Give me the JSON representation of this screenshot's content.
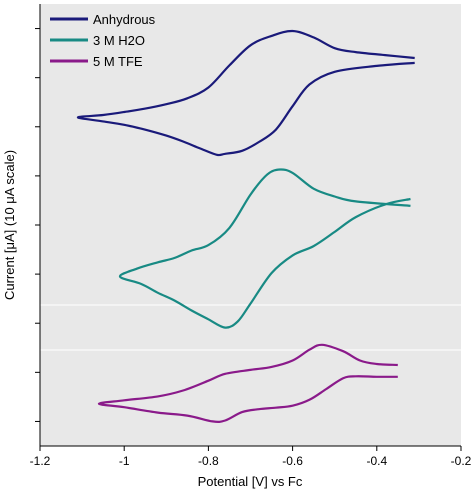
{
  "chart_data": {
    "type": "line",
    "xlabel": "Potential [V] vs Fc",
    "ylabel": "Current [μA] (10 μA scale)",
    "xlim": [
      -1.2,
      -0.2
    ],
    "x_ticks": [
      "-1.2",
      "-1",
      "-0.8",
      "-0.6",
      "-0.4",
      "-0.2"
    ],
    "ylim": [
      -45,
      45
    ],
    "y_ticks": [
      -40,
      -30,
      -20,
      -10,
      0,
      10,
      20,
      30,
      40
    ],
    "grid": false,
    "legend_position": "top-left",
    "series": [
      {
        "name": "Anhydrous",
        "color": "#1a1a7a",
        "points": [
          [
            -0.31,
            33.0
          ],
          [
            -0.4,
            32.4
          ],
          [
            -0.5,
            31.2
          ],
          [
            -0.56,
            28.6
          ],
          [
            -0.6,
            24.2
          ],
          [
            -0.64,
            19.4
          ],
          [
            -0.68,
            16.9
          ],
          [
            -0.72,
            15.1
          ],
          [
            -0.76,
            14.5
          ],
          [
            -0.78,
            14.3
          ],
          [
            -0.82,
            15.6
          ],
          [
            -0.86,
            17.0
          ],
          [
            -0.9,
            18.2
          ],
          [
            -0.95,
            19.4
          ],
          [
            -1.0,
            20.4
          ],
          [
            -1.05,
            21.1
          ],
          [
            -1.11,
            21.9
          ],
          [
            -1.05,
            22.4
          ],
          [
            -1.0,
            23.0
          ],
          [
            -0.95,
            23.7
          ],
          [
            -0.9,
            24.6
          ],
          [
            -0.85,
            25.8
          ],
          [
            -0.8,
            28.0
          ],
          [
            -0.75,
            32.5
          ],
          [
            -0.7,
            36.6
          ],
          [
            -0.65,
            38.5
          ],
          [
            -0.6,
            39.5
          ],
          [
            -0.55,
            38.2
          ],
          [
            -0.5,
            36.0
          ],
          [
            -0.45,
            35.2
          ],
          [
            -0.38,
            34.6
          ],
          [
            -0.31,
            34.0
          ]
        ]
      },
      {
        "name": "3 M H2O",
        "color": "#188a84",
        "points": [
          [
            -0.32,
            5.3
          ],
          [
            -0.38,
            4.2
          ],
          [
            -0.45,
            1.6
          ],
          [
            -0.5,
            -1.4
          ],
          [
            -0.55,
            -4.3
          ],
          [
            -0.6,
            -6.2
          ],
          [
            -0.65,
            -9.8
          ],
          [
            -0.7,
            -16.0
          ],
          [
            -0.73,
            -19.6
          ],
          [
            -0.76,
            -20.9
          ],
          [
            -0.8,
            -19.2
          ],
          [
            -0.84,
            -17.4
          ],
          [
            -0.88,
            -15.4
          ],
          [
            -0.92,
            -13.8
          ],
          [
            -0.96,
            -12.0
          ],
          [
            -1.01,
            -10.5
          ],
          [
            -0.97,
            -8.9
          ],
          [
            -0.92,
            -7.6
          ],
          [
            -0.88,
            -6.7
          ],
          [
            -0.84,
            -5.2
          ],
          [
            -0.8,
            -4.1
          ],
          [
            -0.75,
            -0.6
          ],
          [
            -0.7,
            6.2
          ],
          [
            -0.66,
            10.3
          ],
          [
            -0.63,
            11.3
          ],
          [
            -0.6,
            10.6
          ],
          [
            -0.55,
            7.4
          ],
          [
            -0.5,
            5.8
          ],
          [
            -0.45,
            4.8
          ],
          [
            -0.32,
            3.9
          ]
        ]
      },
      {
        "name": "5 M TFE",
        "color": "#8a1a8a",
        "points": [
          [
            -0.35,
            -30.9
          ],
          [
            -0.4,
            -30.9
          ],
          [
            -0.45,
            -30.8
          ],
          [
            -0.48,
            -31.2
          ],
          [
            -0.52,
            -33.4
          ],
          [
            -0.56,
            -35.6
          ],
          [
            -0.6,
            -36.8
          ],
          [
            -0.64,
            -37.2
          ],
          [
            -0.68,
            -37.5
          ],
          [
            -0.72,
            -38.1
          ],
          [
            -0.76,
            -39.8
          ],
          [
            -0.79,
            -40.0
          ],
          [
            -0.85,
            -38.8
          ],
          [
            -0.92,
            -38.2
          ],
          [
            -1.0,
            -37.1
          ],
          [
            -1.06,
            -36.4
          ],
          [
            -1.0,
            -35.7
          ],
          [
            -0.92,
            -34.9
          ],
          [
            -0.86,
            -33.7
          ],
          [
            -0.8,
            -31.7
          ],
          [
            -0.76,
            -30.3
          ],
          [
            -0.7,
            -29.5
          ],
          [
            -0.65,
            -28.9
          ],
          [
            -0.6,
            -27.6
          ],
          [
            -0.56,
            -25.4
          ],
          [
            -0.53,
            -24.4
          ],
          [
            -0.48,
            -25.7
          ],
          [
            -0.44,
            -27.6
          ],
          [
            -0.4,
            -28.3
          ],
          [
            -0.35,
            -28.5
          ]
        ]
      }
    ]
  }
}
